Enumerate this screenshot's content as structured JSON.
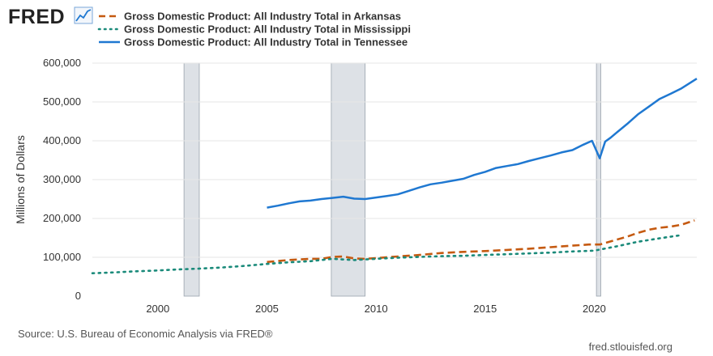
{
  "brand": {
    "logo_text": "FRED",
    "logo_icon": "trend-line-icon",
    "source_url": "fred.stlouisfed.org"
  },
  "source_note": "Source: U.S. Bureau of Economic Analysis via FRED®",
  "colors": {
    "arkansas": "#c55a11",
    "mississippi": "#1a8a7a",
    "tennessee": "#1f78d1",
    "recession": "#dde1e6",
    "grid": "#e6e6e6"
  },
  "chart_data": {
    "type": "line",
    "ylabel": "Millions of Dollars",
    "xlim": [
      1997,
      2024.7
    ],
    "ylim": [
      0,
      600000
    ],
    "y_ticks": [
      0,
      100000,
      200000,
      300000,
      400000,
      500000,
      600000
    ],
    "y_tick_labels": [
      "0",
      "100,000",
      "200,000",
      "300,000",
      "400,000",
      "500,000",
      "600,000"
    ],
    "x_ticks": [
      2000,
      2005,
      2010,
      2015,
      2020
    ],
    "x_tick_labels": [
      "2000",
      "2005",
      "2010",
      "2015",
      "2020"
    ],
    "grid": true,
    "legend_position": "top-left",
    "recessions": [
      [
        2001.2,
        2001.9
      ],
      [
        2007.95,
        2009.5
      ],
      [
        2020.1,
        2020.3
      ]
    ],
    "series": [
      {
        "name": "Gross Domestic Product: All Industry Total in Arkansas",
        "color": "#c55a11",
        "style": "dashed",
        "x": [
          2005.0,
          2006.0,
          2007.0,
          2007.5,
          2008.0,
          2008.5,
          2009.0,
          2009.5,
          2010.0,
          2011.0,
          2012.0,
          2013.0,
          2014.0,
          2015.0,
          2016.0,
          2017.0,
          2018.0,
          2019.0,
          2019.75,
          2020.25,
          2021.0,
          2021.5,
          2022.0,
          2022.5,
          2023.0,
          2023.5,
          2024.0,
          2024.6
        ],
        "y": [
          88000,
          93000,
          96000,
          96000,
          101000,
          102000,
          97000,
          96000,
          98000,
          102000,
          106000,
          111000,
          114000,
          116000,
          119000,
          122000,
          126000,
          130000,
          133000,
          133000,
          145000,
          153000,
          163000,
          171000,
          176000,
          179000,
          184000,
          195000
        ]
      },
      {
        "name": "Gross Domestic Product: All Industry Total in Mississippi",
        "color": "#1a8a7a",
        "style": "dotted",
        "x": [
          1997.0,
          1998.0,
          1999.0,
          2000.0,
          2001.0,
          2002.0,
          2003.0,
          2004.0,
          2005.0,
          2006.0,
          2007.0,
          2008.0,
          2009.0,
          2010.0,
          2011.0,
          2012.0,
          2013.0,
          2014.0,
          2015.0,
          2016.0,
          2017.0,
          2018.0,
          2019.0,
          2020.0,
          2021.0,
          2022.0,
          2023.0,
          2024.0
        ],
        "y": [
          59000,
          61000,
          64000,
          66000,
          69000,
          71000,
          74000,
          78000,
          83000,
          87000,
          90000,
          96000,
          93000,
          96000,
          99000,
          101000,
          103000,
          104000,
          106000,
          108000,
          110000,
          112000,
          115000,
          117000,
          128000,
          140000,
          149000,
          157000
        ]
      },
      {
        "name": "Gross Domestic Product: All Industry Total in Tennessee",
        "color": "#1f78d1",
        "style": "solid",
        "x": [
          2005.0,
          2005.5,
          2006.0,
          2006.5,
          2007.0,
          2007.5,
          2008.0,
          2008.5,
          2009.0,
          2009.5,
          2010.0,
          2010.5,
          2011.0,
          2011.5,
          2012.0,
          2012.5,
          2013.0,
          2013.5,
          2014.0,
          2014.5,
          2015.0,
          2015.5,
          2016.0,
          2016.5,
          2017.0,
          2017.5,
          2018.0,
          2018.5,
          2019.0,
          2019.5,
          2019.9,
          2020.25,
          2020.5,
          2020.75,
          2021.0,
          2021.5,
          2022.0,
          2022.5,
          2023.0,
          2023.5,
          2024.0,
          2024.7
        ],
        "y": [
          228000,
          233000,
          239000,
          244000,
          246000,
          250000,
          253000,
          256000,
          251000,
          250000,
          254000,
          258000,
          262000,
          271000,
          280000,
          288000,
          292000,
          297000,
          302000,
          312000,
          320000,
          330000,
          335000,
          340000,
          348000,
          355000,
          362000,
          370000,
          376000,
          390000,
          400000,
          355000,
          398000,
          408000,
          420000,
          443000,
          468000,
          488000,
          508000,
          521000,
          535000,
          560000
        ]
      }
    ]
  }
}
